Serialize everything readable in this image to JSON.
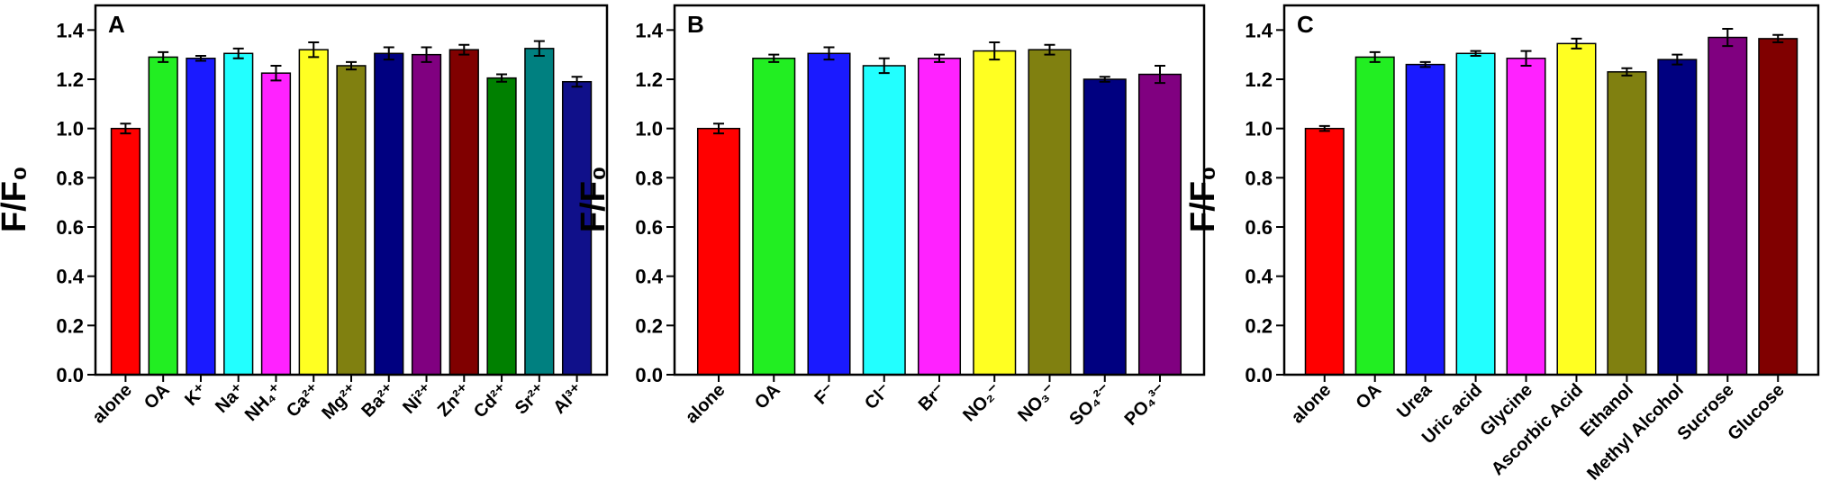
{
  "chart_data": [
    {
      "type": "bar",
      "title": "A",
      "y_label": "F/F₀",
      "categories": [
        "alone",
        "OA",
        "K⁺",
        "Na⁺",
        "NH₄⁺",
        "Ca²⁺",
        "Mg²⁺",
        "Ba²⁺",
        "Ni²⁺",
        "Zn²⁺",
        "Cd²⁺",
        "Sr²⁺",
        "Al³⁺"
      ],
      "values": [
        1.0,
        1.29,
        1.285,
        1.305,
        1.225,
        1.32,
        1.255,
        1.305,
        1.3,
        1.32,
        1.205,
        1.325,
        1.19
      ],
      "errors": [
        0.02,
        0.02,
        0.01,
        0.02,
        0.03,
        0.03,
        0.015,
        0.025,
        0.03,
        0.02,
        0.015,
        0.03,
        0.02
      ],
      "colors": [
        "#ff0000",
        "#22ee22",
        "#1a1aff",
        "#22ffff",
        "#ff22ff",
        "#ffff22",
        "#808010",
        "#000080",
        "#800080",
        "#800000",
        "#008000",
        "#008080",
        "#10108a"
      ],
      "ylim": [
        0,
        1.5
      ],
      "yticks": [
        {
          "value": 0,
          "label": "0.0"
        },
        0.2,
        0.4,
        0.6,
        0.8,
        {
          "value": 1,
          "label": "1.0"
        },
        1.2,
        1.4
      ]
    },
    {
      "type": "bar",
      "title": "B",
      "y_label": "F/F₀",
      "categories": [
        "alone",
        "OA",
        "F⁻",
        "Cl⁻",
        "Br⁻",
        "NO₂⁻",
        "NO₃⁻",
        "SO₄²⁻",
        "PO₄³⁻"
      ],
      "values": [
        1.0,
        1.285,
        1.305,
        1.255,
        1.285,
        1.315,
        1.32,
        1.2,
        1.22
      ],
      "errors": [
        0.02,
        0.015,
        0.025,
        0.03,
        0.015,
        0.035,
        0.02,
        0.01,
        0.035
      ],
      "colors": [
        "#ff0000",
        "#22ee22",
        "#1a1aff",
        "#22ffff",
        "#ff22ff",
        "#ffff22",
        "#808010",
        "#000080",
        "#800080"
      ],
      "ylim": [
        0,
        1.5
      ],
      "yticks": [
        {
          "value": 0,
          "label": "0.0"
        },
        0.2,
        0.4,
        0.6,
        0.8,
        {
          "value": 1,
          "label": "1.0"
        },
        1.2,
        1.4
      ]
    },
    {
      "type": "bar",
      "title": "C",
      "y_label": "F/F₀",
      "categories": [
        "alone",
        "OA",
        "Urea",
        "Uric acid",
        "Glycine",
        "Ascorbic Acid",
        "Ethanol",
        "Methyl Alcohol",
        "Sucrose",
        "Glucose"
      ],
      "values": [
        1.0,
        1.29,
        1.26,
        1.305,
        1.285,
        1.345,
        1.23,
        1.28,
        1.37,
        1.365
      ],
      "errors": [
        0.01,
        0.02,
        0.01,
        0.01,
        0.03,
        0.02,
        0.015,
        0.02,
        0.035,
        0.015
      ],
      "colors": [
        "#ff0000",
        "#22ee22",
        "#1a1aff",
        "#22ffff",
        "#ff22ff",
        "#ffff22",
        "#808010",
        "#000080",
        "#800080",
        "#800000"
      ],
      "ylim": [
        0,
        1.5
      ],
      "yticks": [
        {
          "value": 0,
          "label": "0.0"
        },
        0.2,
        0.4,
        0.6,
        0.8,
        {
          "value": 1,
          "label": "1.0"
        },
        1.2,
        1.4
      ]
    }
  ]
}
